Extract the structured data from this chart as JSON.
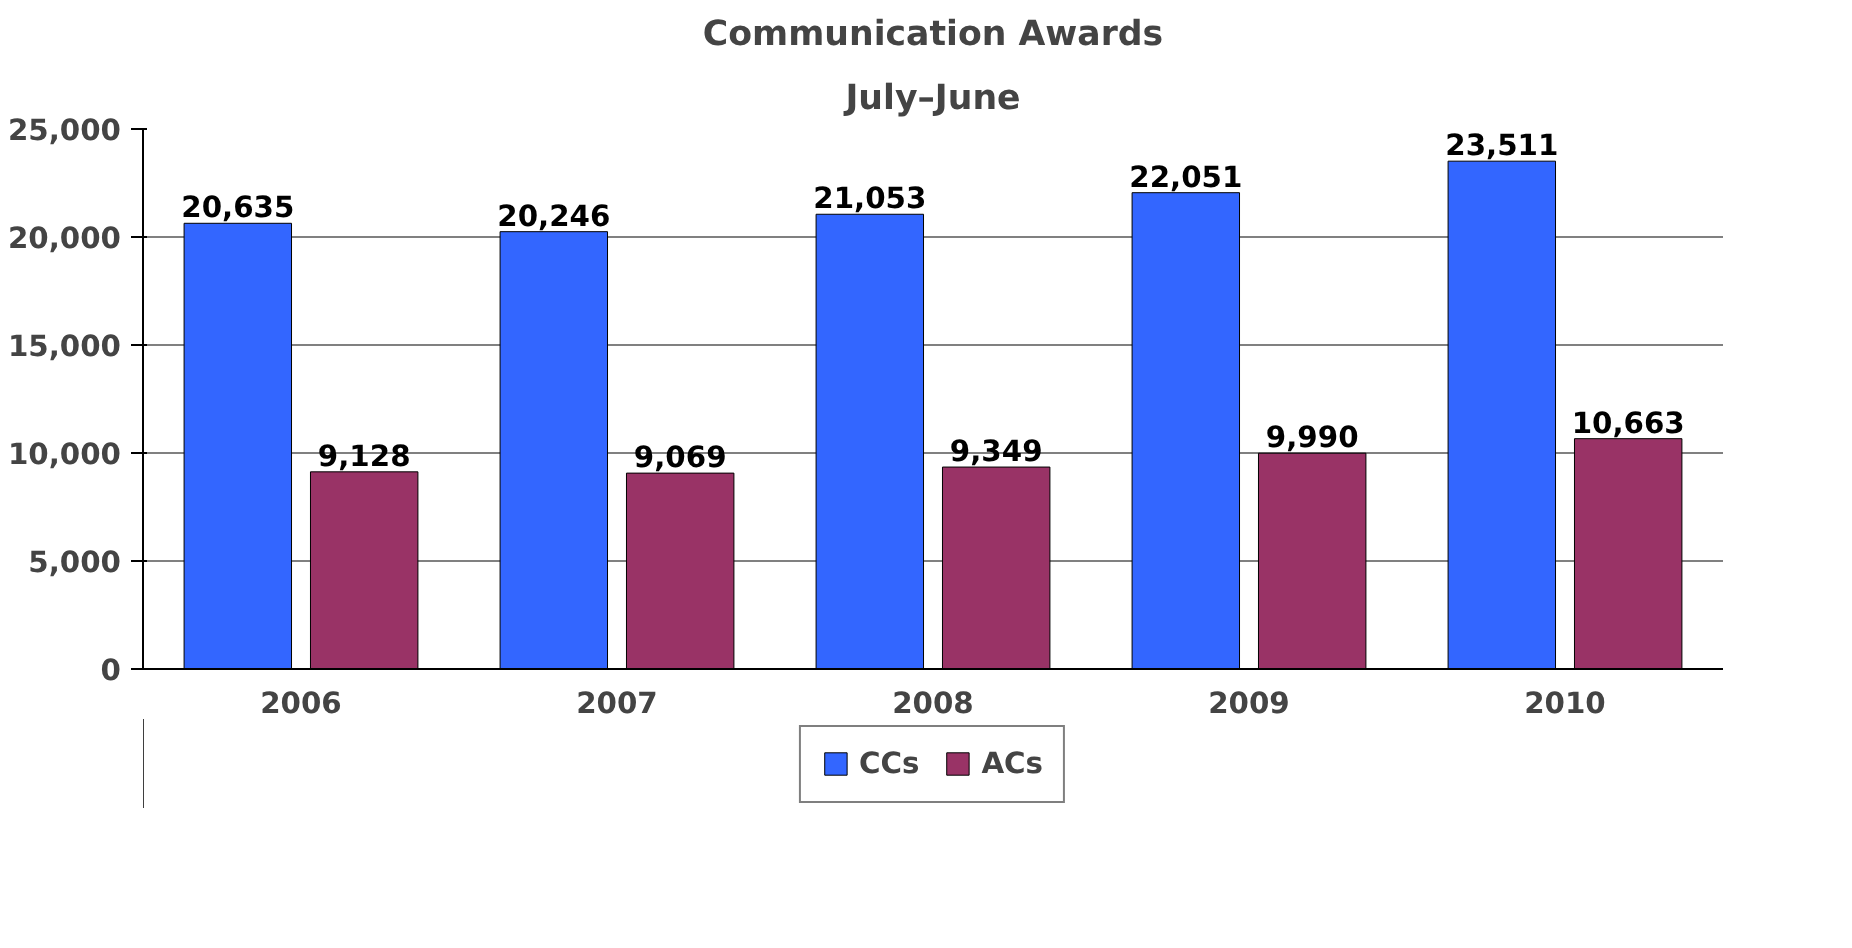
{
  "chart_data": {
    "type": "bar",
    "title": "Communication Awards",
    "subtitle": "July–June",
    "categories": [
      "2006",
      "2007",
      "2008",
      "2009",
      "2010"
    ],
    "series": [
      {
        "name": "CCs",
        "color": "#3366ff",
        "values": [
          20635,
          20246,
          21053,
          22051,
          23511
        ],
        "value_labels": [
          "20,635",
          "20,246",
          "21,053",
          "22,051",
          "23,511"
        ]
      },
      {
        "name": "ACs",
        "color": "#993366",
        "values": [
          9128,
          9069,
          9349,
          9990,
          10663
        ],
        "value_labels": [
          "9,128",
          "9,069",
          "9,349",
          "9,990",
          "10,663"
        ]
      }
    ],
    "ylim": [
      0,
      25000
    ],
    "yticks": [
      0,
      {
        "value": 5000,
        "label": "5,000"
      },
      {
        "value": 10000,
        "label": "10,000"
      },
      {
        "value": 15000,
        "label": "15,000"
      },
      {
        "value": 20000,
        "label": "20,000"
      },
      {
        "value": 25000,
        "label": "25,000"
      }
    ],
    "grid": "y",
    "legend": "bottom"
  }
}
